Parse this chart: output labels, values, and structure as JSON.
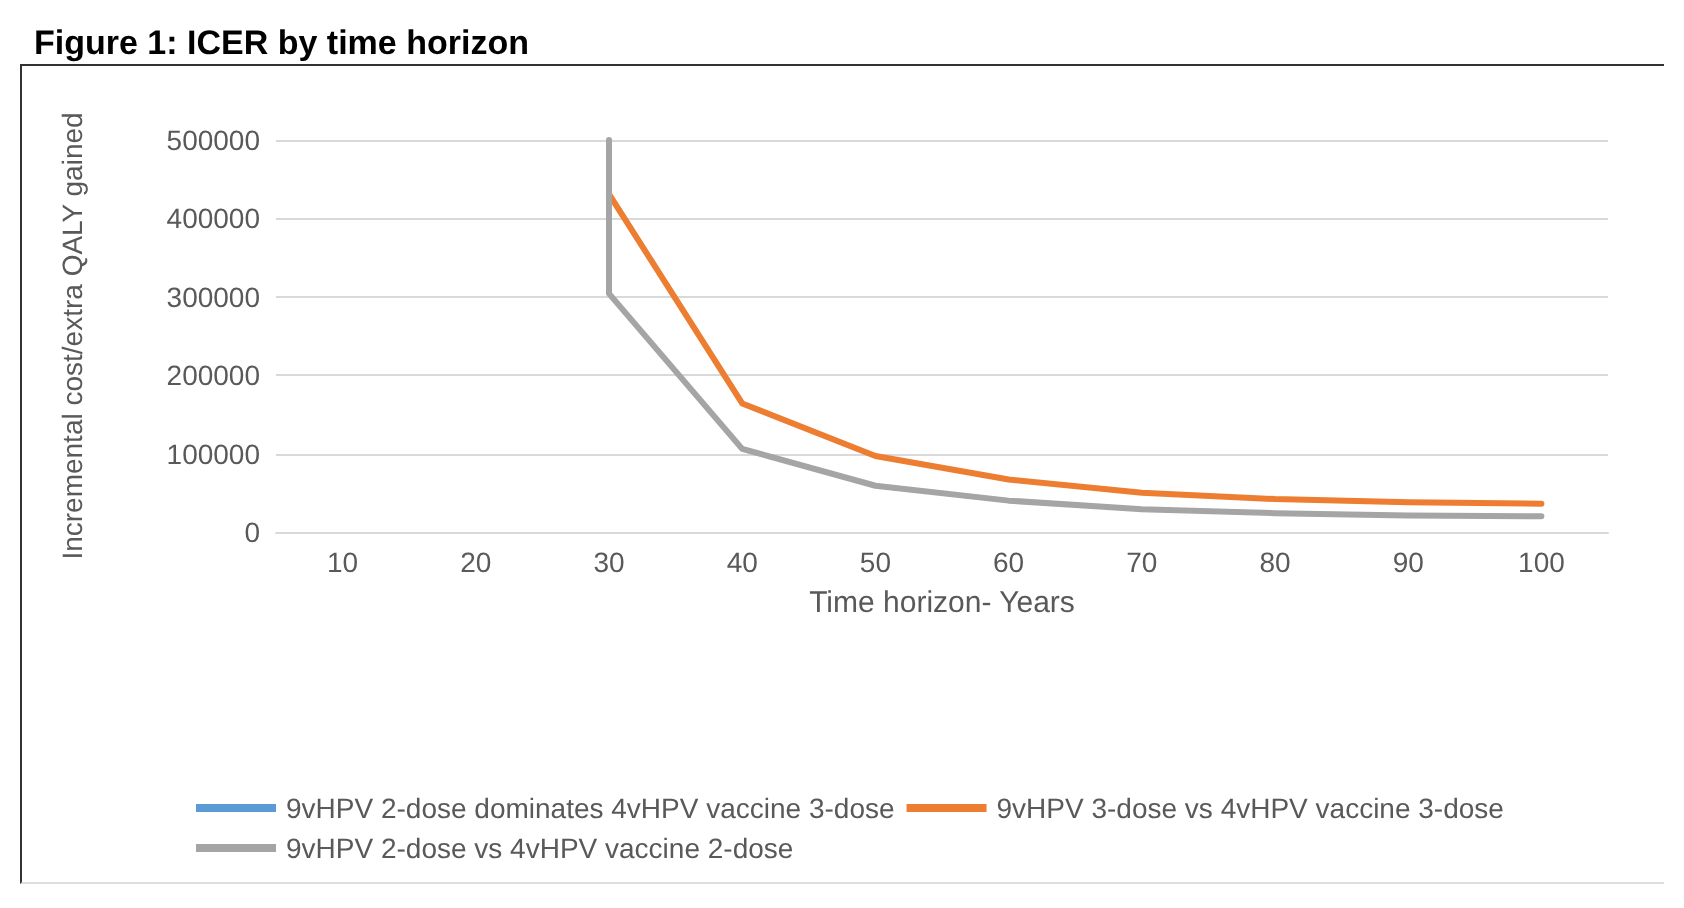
{
  "chart_data": {
    "type": "line",
    "title": "Figure 1: ICER by time horizon",
    "xlabel": "Time horizon- Years",
    "ylabel": "Incremental cost/extra QALY gained",
    "categories": [
      "10",
      "20",
      "30",
      "40",
      "50",
      "60",
      "70",
      "80",
      "90",
      "100"
    ],
    "series": [
      {
        "name": "9vHPV 2-dose dominates 4vHPV vaccine 3-dose",
        "color": "#5b9bd5",
        "values": [
          null,
          null,
          null,
          null,
          null,
          null,
          null,
          null,
          null,
          null
        ]
      },
      {
        "name": "9vHPV 3-dose vs 4vHPV vaccine 3-dose",
        "color": "#ed7d31",
        "values": [
          null,
          null,
          431000,
          164000,
          97000,
          67000,
          50000,
          42000,
          38000,
          36000
        ]
      },
      {
        "name": "9vHPV 2-dose vs 4vHPV vaccine 2-dose",
        "color": "#a5a5a5",
        "x": [
          "30",
          "30",
          "40",
          "50",
          "60",
          "70",
          "80",
          "90",
          "100"
        ],
        "values": [
          500000,
          304000,
          106000,
          59000,
          40000,
          29000,
          24000,
          21000,
          20000
        ]
      }
    ],
    "ylim": [
      0,
      500000
    ],
    "yticks": [
      0,
      100000,
      200000,
      300000,
      400000,
      500000
    ],
    "grid": "y",
    "legend": "bottom",
    "marker": "none",
    "line_style": "solid"
  }
}
